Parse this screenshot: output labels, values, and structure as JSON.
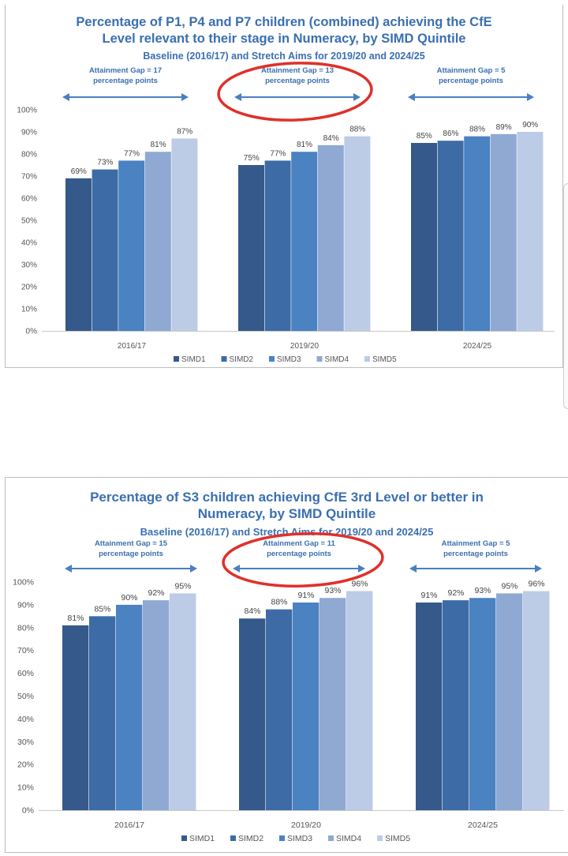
{
  "charts": [
    {
      "title_line1": "Percentage of P1, P4 and P7 children (combined) achieving the CfE",
      "title_line2": "Level relevant to their stage in Numeracy, by SIMD Quintile",
      "subtitle": "Baseline (2016/17) and Stretch Aims for 2019/20 and 2024/25",
      "gaps": [
        {
          "line1": "Attainment Gap = 17",
          "line2": "percentage points",
          "circled": false
        },
        {
          "line1": "Attainment Gap = 13",
          "line2": "percentage points",
          "circled": true
        },
        {
          "line1": "Attainment Gap = 5",
          "line2": "percentage points",
          "circled": false
        }
      ]
    },
    {
      "title_line1": "Percentage of S3 children achieving CfE 3rd Level or better in",
      "title_line2": "Numeracy, by SIMD Quintile",
      "subtitle": "Baseline (2016/17) and Stretch Aims for 2019/20 and 2024/25",
      "gaps": [
        {
          "line1": "Attainment Gap = 15",
          "line2": "percentage points",
          "circled": false
        },
        {
          "line1": "Attainment Gap = 11",
          "line2": "percentage points",
          "circled": true
        },
        {
          "line1": "Attainment Gap = 5",
          "line2": "percentage points",
          "circled": false
        }
      ]
    }
  ],
  "colors": {
    "SIMD1": "#35598a",
    "SIMD2": "#3d6ba6",
    "SIMD3": "#4a82c2",
    "SIMD4": "#8fa9d3",
    "SIMD5": "#bccbe6",
    "arrow": "#4a7fc0",
    "circle": "#e0302a",
    "axis_text": "#555555"
  },
  "chart_data": [
    {
      "type": "bar",
      "title": "Percentage of P1, P4 and P7 children (combined) achieving the CfE Level relevant to their stage in Numeracy, by SIMD Quintile",
      "subtitle": "Baseline (2016/17) and Stretch Aims for 2019/20 and 2024/25",
      "categories": [
        "2016/17",
        "2019/20",
        "2024/25"
      ],
      "series": [
        {
          "name": "SIMD1",
          "values": [
            69,
            75,
            85
          ]
        },
        {
          "name": "SIMD2",
          "values": [
            73,
            77,
            86
          ]
        },
        {
          "name": "SIMD3",
          "values": [
            77,
            81,
            88
          ]
        },
        {
          "name": "SIMD4",
          "values": [
            81,
            84,
            89
          ]
        },
        {
          "name": "SIMD5",
          "values": [
            87,
            88,
            90
          ]
        }
      ],
      "ylim": [
        0,
        100
      ],
      "yticks": [
        "0%",
        "10%",
        "20%",
        "30%",
        "40%",
        "50%",
        "60%",
        "70%",
        "80%",
        "90%",
        "100%"
      ],
      "legend": "bottom",
      "grid": false
    },
    {
      "type": "bar",
      "title": "Percentage of S3 children achieving CfE 3rd Level or better in Numeracy, by SIMD Quintile",
      "subtitle": "Baseline (2016/17) and Stretch Aims for 2019/20 and 2024/25",
      "categories": [
        "2016/17",
        "2019/20",
        "2024/25"
      ],
      "series": [
        {
          "name": "SIMD1",
          "values": [
            81,
            84,
            91
          ]
        },
        {
          "name": "SIMD2",
          "values": [
            85,
            88,
            92
          ]
        },
        {
          "name": "SIMD3",
          "values": [
            90,
            91,
            93
          ]
        },
        {
          "name": "SIMD4",
          "values": [
            92,
            93,
            95
          ]
        },
        {
          "name": "SIMD5",
          "values": [
            95,
            96,
            96
          ]
        }
      ],
      "ylim": [
        0,
        100
      ],
      "yticks": [
        "0%",
        "10%",
        "20%",
        "30%",
        "40%",
        "50%",
        "60%",
        "70%",
        "80%",
        "90%",
        "100%"
      ],
      "legend": "bottom",
      "grid": false
    }
  ]
}
